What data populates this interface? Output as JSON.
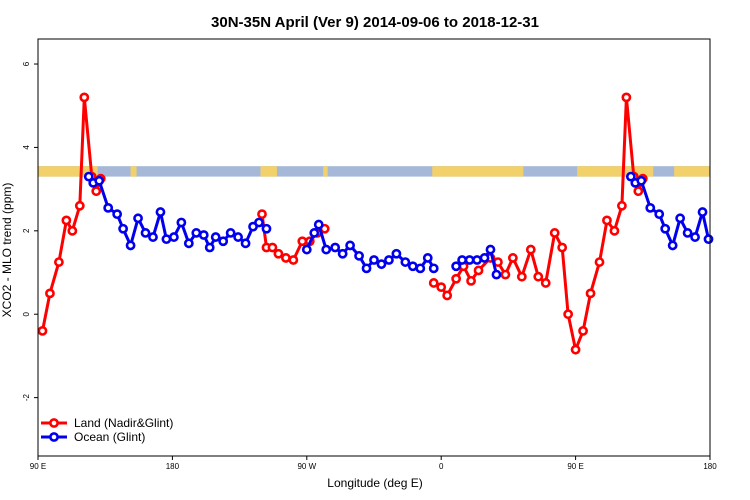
{
  "chart_data": {
    "type": "line",
    "title": "30N-35N April (Ver 9)   2014-09-06 to 2018-12-31",
    "xlabel": "Longitude (deg E)",
    "ylabel": "XCO2 - MLO trend (ppm)",
    "x_ticks": [
      {
        "value": 90,
        "label": "90 E"
      },
      {
        "value": 180,
        "label": "180"
      },
      {
        "value": 270,
        "label": "90 W"
      },
      {
        "value": 360,
        "label": "0"
      },
      {
        "value": 450,
        "label": "90 E"
      },
      {
        "value": 540,
        "label": "180"
      }
    ],
    "y_ticks": [
      {
        "value": -2,
        "label": "-2"
      },
      {
        "value": 0,
        "label": "0"
      },
      {
        "value": 2,
        "label": "2"
      },
      {
        "value": 4,
        "label": "4"
      },
      {
        "value": 6,
        "label": "6"
      }
    ],
    "xlim": [
      90,
      540
    ],
    "ylim": [
      -3.4,
      6.6
    ],
    "background_band": {
      "ymin": 3.3,
      "ymax": 3.55,
      "land_color": "#f2d06a",
      "ocean_color": "#a6b8d8",
      "land_ranges": [
        [
          90,
          130
        ],
        [
          152,
          156
        ],
        [
          239,
          250
        ],
        [
          281,
          284
        ],
        [
          354,
          415
        ],
        [
          451,
          502
        ],
        [
          516,
          540
        ]
      ]
    },
    "legend": {
      "position": "bottom-left",
      "entries": [
        {
          "name": "Land (Nadir&Glint)",
          "color": "#ff0000"
        },
        {
          "name": "Ocean (Glint)",
          "color": "#0000ee"
        }
      ]
    },
    "series": [
      {
        "name": "Land (Nadir&Glint)",
        "color": "#ff0000",
        "segments": [
          [
            [
              93,
              -0.4
            ],
            [
              98,
              0.5
            ],
            [
              104,
              1.25
            ],
            [
              109,
              2.25
            ],
            [
              113,
              2.0
            ],
            [
              118,
              2.6
            ],
            [
              121,
              5.2
            ],
            [
              126,
              3.3
            ],
            [
              129,
              2.95
            ],
            [
              132,
              3.25
            ]
          ],
          [
            [
              240,
              2.4
            ],
            [
              243,
              1.6
            ],
            [
              247,
              1.6
            ],
            [
              251,
              1.45
            ],
            [
              256,
              1.35
            ],
            [
              261,
              1.3
            ],
            [
              267,
              1.75
            ],
            [
              272,
              1.75
            ],
            [
              277,
              1.95
            ],
            [
              282,
              2.05
            ]
          ],
          [
            [
              355,
              0.75
            ],
            [
              360,
              0.65
            ],
            [
              364,
              0.45
            ],
            [
              370,
              0.85
            ],
            [
              375,
              1.15
            ],
            [
              380,
              0.8
            ],
            [
              385,
              1.05
            ],
            [
              393,
              1.35
            ],
            [
              398,
              1.25
            ],
            [
              403,
              0.95
            ],
            [
              408,
              1.35
            ],
            [
              414,
              0.9
            ],
            [
              420,
              1.55
            ],
            [
              425,
              0.9
            ],
            [
              430,
              0.75
            ],
            [
              436,
              1.95
            ],
            [
              441,
              1.6
            ],
            [
              445,
              0.0
            ],
            [
              450,
              -0.85
            ],
            [
              455,
              -0.4
            ],
            [
              460,
              0.5
            ],
            [
              466,
              1.25
            ],
            [
              471,
              2.25
            ],
            [
              476,
              2.0
            ],
            [
              481,
              2.6
            ],
            [
              484,
              5.2
            ],
            [
              489,
              3.3
            ],
            [
              492,
              2.95
            ],
            [
              495,
              3.25
            ]
          ]
        ]
      },
      {
        "name": "Ocean (Glint)",
        "color": "#0000ee",
        "segments": [
          [
            [
              124,
              3.3
            ],
            [
              127,
              3.15
            ],
            [
              131,
              3.2
            ],
            [
              137,
              2.55
            ],
            [
              143,
              2.4
            ],
            [
              147,
              2.05
            ],
            [
              152,
              1.65
            ],
            [
              157,
              2.3
            ],
            [
              162,
              1.95
            ],
            [
              167,
              1.85
            ],
            [
              172,
              2.45
            ],
            [
              176,
              1.8
            ],
            [
              181,
              1.85
            ],
            [
              186,
              2.2
            ],
            [
              191,
              1.7
            ],
            [
              196,
              1.95
            ],
            [
              201,
              1.9
            ],
            [
              205,
              1.6
            ],
            [
              209,
              1.85
            ],
            [
              214,
              1.75
            ],
            [
              219,
              1.95
            ],
            [
              224,
              1.85
            ],
            [
              229,
              1.7
            ],
            [
              234,
              2.1
            ],
            [
              238,
              2.2
            ],
            [
              243,
              2.05
            ]
          ],
          [
            [
              270,
              1.55
            ],
            [
              275,
              1.95
            ],
            [
              278,
              2.15
            ],
            [
              283,
              1.55
            ],
            [
              289,
              1.6
            ],
            [
              294,
              1.45
            ],
            [
              299,
              1.65
            ],
            [
              305,
              1.4
            ],
            [
              310,
              1.1
            ],
            [
              315,
              1.3
            ],
            [
              320,
              1.2
            ],
            [
              325,
              1.3
            ],
            [
              330,
              1.45
            ],
            [
              336,
              1.25
            ],
            [
              341,
              1.15
            ],
            [
              346,
              1.1
            ],
            [
              351,
              1.35
            ],
            [
              355,
              1.1
            ]
          ],
          [
            [
              370,
              1.15
            ],
            [
              374,
              1.3
            ],
            [
              379,
              1.3
            ],
            [
              384,
              1.3
            ],
            [
              389,
              1.35
            ],
            [
              393,
              1.55
            ],
            [
              397,
              0.95
            ]
          ],
          [
            [
              487,
              3.3
            ],
            [
              490,
              3.15
            ],
            [
              494,
              3.2
            ],
            [
              500,
              2.55
            ],
            [
              506,
              2.4
            ],
            [
              510,
              2.05
            ],
            [
              515,
              1.65
            ],
            [
              520,
              2.3
            ],
            [
              525,
              1.95
            ],
            [
              530,
              1.85
            ],
            [
              535,
              2.45
            ],
            [
              539,
              1.8
            ]
          ]
        ]
      }
    ]
  }
}
